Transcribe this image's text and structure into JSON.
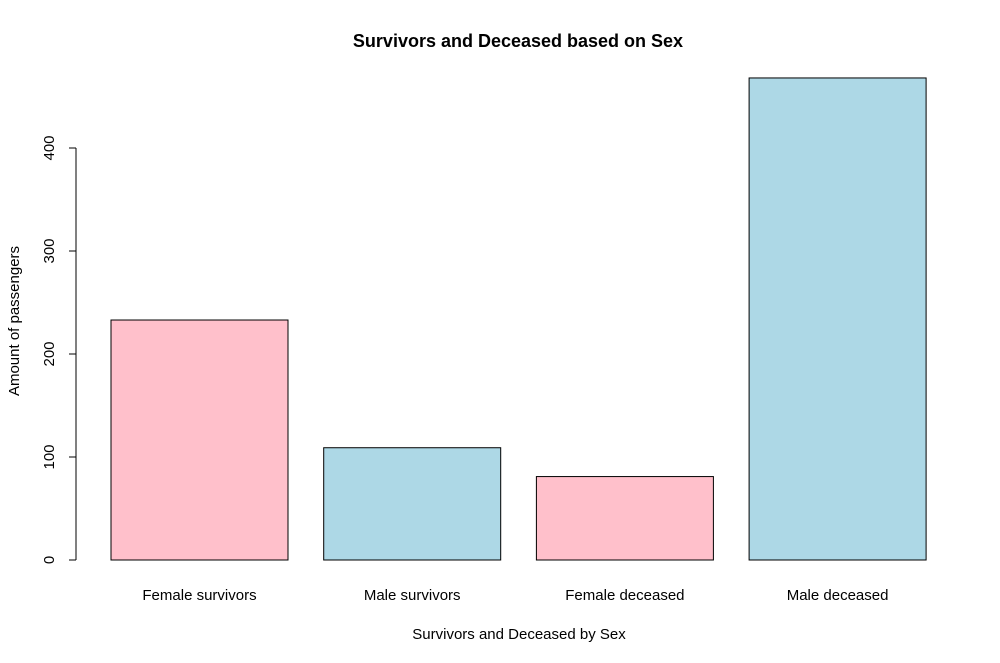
{
  "chart_data": {
    "type": "bar",
    "title": "Survivors and Deceased based on Sex",
    "xlabel": "Survivors and Deceased by Sex",
    "ylabel": "Amount of passengers",
    "categories": [
      "Female survivors",
      "Male survivors",
      "Female deceased",
      "Male deceased"
    ],
    "values": [
      233,
      109,
      81,
      468
    ],
    "bar_colors": [
      "#ffc0cb",
      "#add8e6",
      "#ffc0cb",
      "#add8e6"
    ],
    "yticks": [
      0,
      100,
      200,
      300,
      400
    ],
    "ylim": [
      0,
      468
    ],
    "grid": false,
    "legend": "none"
  }
}
